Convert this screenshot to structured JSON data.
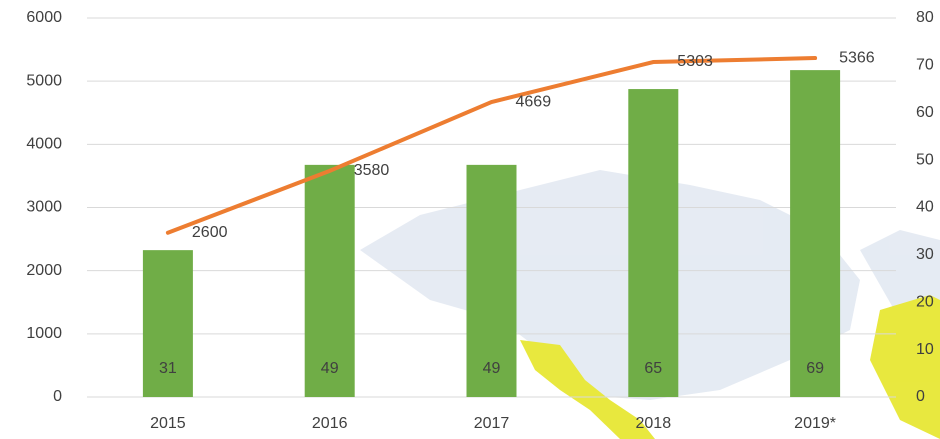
{
  "chart_data": {
    "type": "combo",
    "categories": [
      "2015",
      "2016",
      "2017",
      "2018",
      "2019*"
    ],
    "series": [
      {
        "type": "bar",
        "axis": "y2",
        "color": "#70ad47",
        "values": [
          31,
          49,
          49,
          65,
          69
        ]
      },
      {
        "type": "line",
        "axis": "y",
        "color": "#ed7d31",
        "values": [
          2600,
          3580,
          4669,
          5303,
          5366
        ]
      }
    ],
    "ylim": [
      0,
      6000
    ],
    "yticks": [
      0,
      1000,
      2000,
      3000,
      4000,
      5000,
      6000
    ],
    "y2lim": [
      0,
      80
    ],
    "y2ticks": [
      0,
      10,
      20,
      30,
      40,
      50,
      60,
      70,
      80
    ],
    "grid": true
  }
}
